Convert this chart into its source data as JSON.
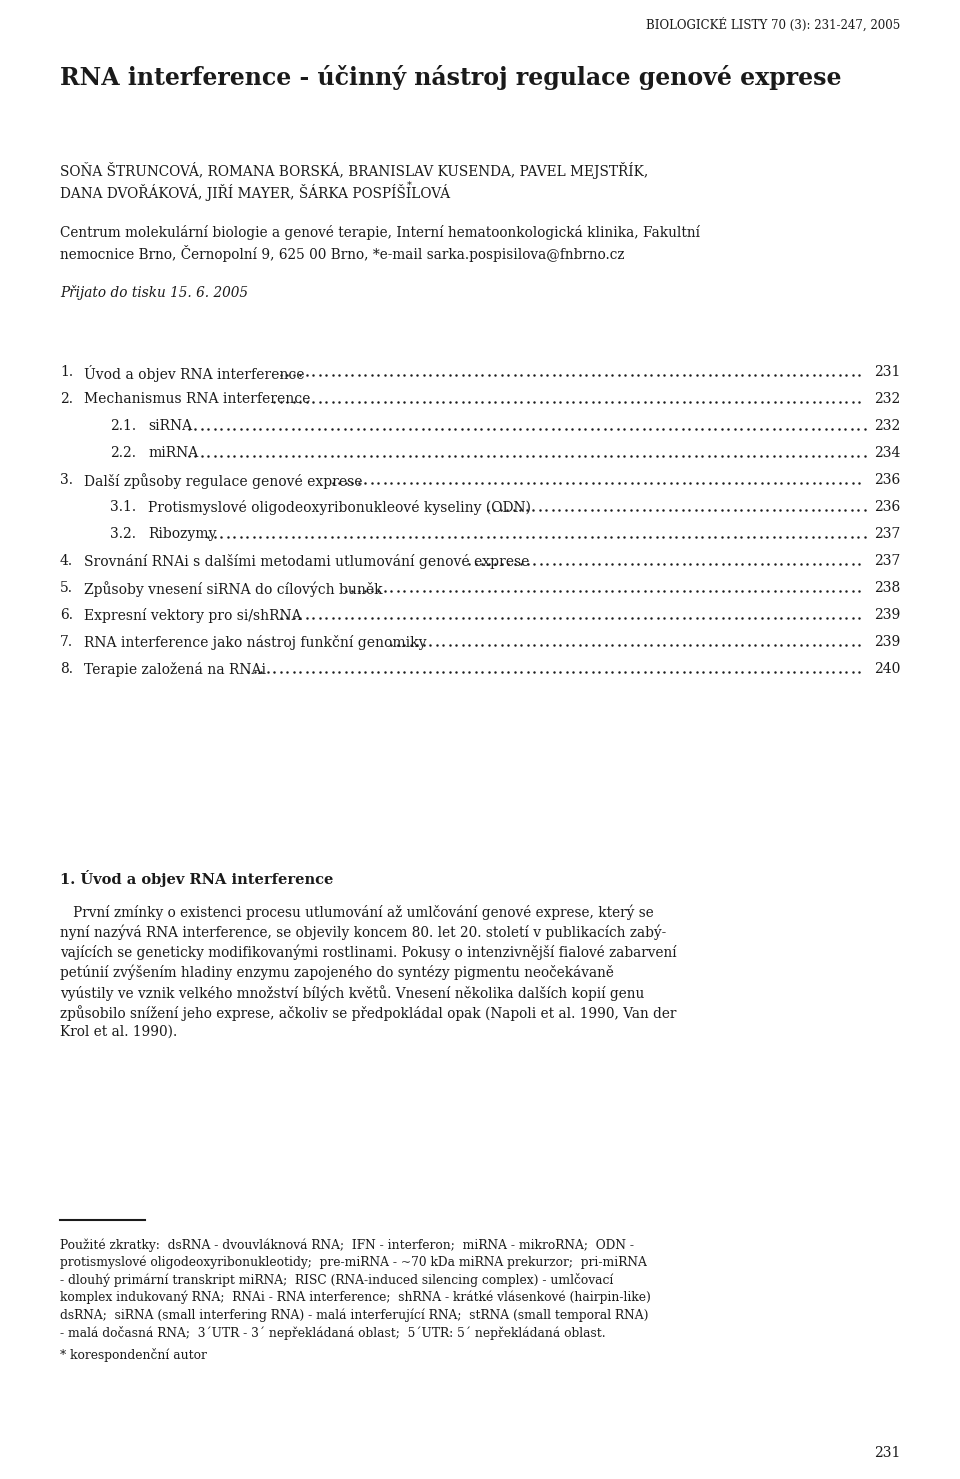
{
  "bg_color": "#ffffff",
  "text_color": "#1a1a1a",
  "page_width": 9.6,
  "page_height": 14.79,
  "header": "BIOLOGICKÉ LISTY 70 (3): 231-247, 2005",
  "title": "RNA interference - účinný nástroj regulace genové exprese",
  "authors_line1": "SOŇA ŠTRUNCOVÁ, ROMANA BORSKÁ, BRANISLAV KUSENDA, PAVEL MEJSTŘÍK,",
  "authors_line2": "DANA DVOŘÁKOVÁ, JIŘÍ MAYER, ŠÁRKA POSPÍŠILOVÁ",
  "authors_asterisk": "*",
  "affiliation_line1": "Centrum molekulární biologie a genové terapie, Interní hematoonkologická klinika, Fakultní",
  "affiliation_line2": "nemocnice Brno, Černopolní 9, 625 00 Brno, *e-mail sarka.pospisilova@fnbrno.cz",
  "prijato": "Přijato do tisku 15. 6. 2005",
  "toc_entries": [
    {
      "num": "1.",
      "text": "Úvod a objev RNA interference",
      "page": "231",
      "indent": false
    },
    {
      "num": "2.",
      "text": "Mechanismus RNA interference",
      "page": "232",
      "indent": false
    },
    {
      "num": "2.1.",
      "text": "siRNA",
      "page": "232",
      "indent": true
    },
    {
      "num": "2.2.",
      "text": "miRNA",
      "page": "234",
      "indent": true
    },
    {
      "num": "3.",
      "text": "Další způsoby regulace genové exprese",
      "page": "236",
      "indent": false
    },
    {
      "num": "3.1.",
      "text": "Protismyslové oligodeoxyribonukleové kyseliny (ODN)",
      "page": "236",
      "indent": true
    },
    {
      "num": "3.2.",
      "text": "Ribozymy",
      "page": "237",
      "indent": true
    },
    {
      "num": "4.",
      "text": "Srovnání RNAi s dalšími metodami utlumování genové exprese",
      "page": "237",
      "indent": false
    },
    {
      "num": "5.",
      "text": "Způsoby vnesení siRNA do cílových buněk",
      "page": "238",
      "indent": false
    },
    {
      "num": "6.",
      "text": "Expresní vektory pro si/shRNA",
      "page": "239",
      "indent": false
    },
    {
      "num": "7.",
      "text": "RNA interference jako nástroj funkční genomiky",
      "page": "239",
      "indent": false
    },
    {
      "num": "8.",
      "text": "Terapie založená na RNAi",
      "page": "240",
      "indent": false
    }
  ],
  "section1_heading": "1. Úvod a objev RNA interference",
  "section1_lines": [
    "   První zmínky o existenci procesu utlumování až umlčování genové exprese, který se",
    "nyní nazývá RNA interference, se objevily koncem 80. let 20. století v publikacích zabý-",
    "vajících se geneticky modifikovanými rostlinami. Pokusy o intenzivnější fialové zabarvení",
    "petúnií zvýšením hladiny enzymu zapojeného do syntézy pigmentu neočekávaně",
    "vyústily ve vznik velkého množství bílých květů. Vnesení několika dalších kopií genu",
    "způsobilo snížení jeho exprese, ačkoliv se předpokládal opak (Napoli et al. 1990, Van der",
    "Krol et al. 1990)."
  ],
  "footnote_lines": [
    "Použité zkratky:  dsRNA - dvouvláknová RNA;  IFN - interferon;  miRNA - mikroRNA;  ODN -",
    "protismyslové oligodeoxyribonukleotidy;  pre-miRNA - ~70 kDa miRNA prekurzor;  pri-miRNA",
    "- dlouhý primární transkript miRNA;  RISC (RNA-induced silencing complex) - umlčovací",
    "komplex indukovaný RNA;  RNAi - RNA interference;  shRNA - krátké vlásenkové (hairpin-like)",
    "dsRNA;  siRNA (small interfering RNA) - malá interferující RNA;  stRNA (small temporal RNA)",
    "- malá dočasná RNA;  3´UTR - 3´ nepřekládaná oblast;  5´UTR: 5´ nepřekládaná oblast."
  ],
  "footnote_asterisk": "* korespondenční autor",
  "page_number": "231"
}
